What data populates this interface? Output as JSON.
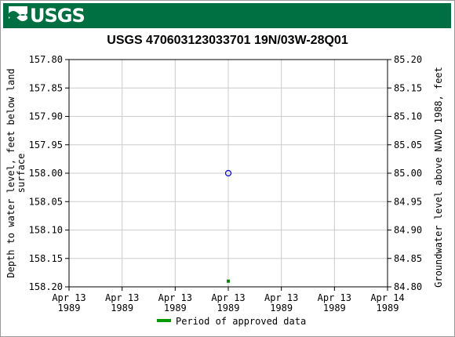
{
  "brand": {
    "logo_text": "USGS",
    "color": "#006f41"
  },
  "chart_data": {
    "type": "scatter",
    "title": "USGS 470603123033701 19N/03W-28Q01",
    "ylabel_left": "Depth to water level, feet below land surface",
    "ylabel_left_lines": [
      "Depth to water level, feet below land",
      "surface"
    ],
    "ylabel_right": "Groundwater level above NAVD 1988, feet",
    "y_left": {
      "min": 157.8,
      "max": 158.2,
      "inverted": true,
      "ticks": [
        "157.80",
        "157.85",
        "157.90",
        "157.95",
        "158.00",
        "158.05",
        "158.10",
        "158.15",
        "158.20"
      ]
    },
    "y_right": {
      "min": 84.8,
      "max": 85.2,
      "ticks": [
        "85.20",
        "85.15",
        "85.10",
        "85.05",
        "85.00",
        "84.95",
        "84.90",
        "84.85",
        "84.80"
      ]
    },
    "x_ticks": [
      {
        "line1": "Apr 13",
        "line2": "1989"
      },
      {
        "line1": "Apr 13",
        "line2": "1989"
      },
      {
        "line1": "Apr 13",
        "line2": "1989"
      },
      {
        "line1": "Apr 13",
        "line2": "1989"
      },
      {
        "line1": "Apr 13",
        "line2": "1989"
      },
      {
        "line1": "Apr 13",
        "line2": "1989"
      },
      {
        "line1": "Apr 14",
        "line2": "1989"
      }
    ],
    "x_range_hours": [
      0,
      24
    ],
    "grid": true,
    "series": [
      {
        "kind": "measurement",
        "marker": "open-circle",
        "color": "#0000cc",
        "points": [
          {
            "x_hour": 12,
            "depth": 158.0
          }
        ]
      },
      {
        "name": "Period of approved data",
        "kind": "approval-period",
        "marker": "square",
        "color": "#008800",
        "points": [
          {
            "x_hour": 12,
            "depth": 158.19
          }
        ]
      }
    ],
    "legend": {
      "position": "bottom",
      "entries": [
        {
          "label": "Period of approved data",
          "color": "#009900"
        }
      ]
    }
  }
}
